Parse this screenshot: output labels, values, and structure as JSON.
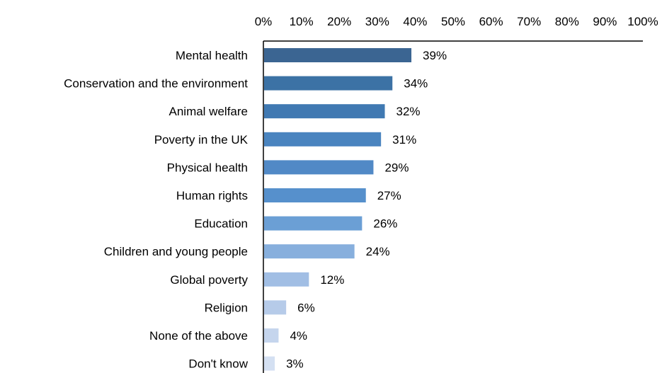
{
  "chart_data": {
    "type": "bar",
    "orientation": "horizontal",
    "categories": [
      "Mental health",
      "Conservation and the environment",
      "Animal welfare",
      "Poverty in the UK",
      "Physical health",
      "Human rights",
      "Education",
      "Children and young people",
      "Global poverty",
      "Religion",
      "None of the above",
      "Don't know"
    ],
    "values": [
      39,
      34,
      32,
      31,
      29,
      27,
      26,
      24,
      12,
      6,
      4,
      3
    ],
    "data_labels": [
      "39%",
      "34%",
      "32%",
      "31%",
      "29%",
      "27%",
      "26%",
      "24%",
      "12%",
      "6%",
      "4%",
      "3%"
    ],
    "x_ticks": [
      "0%",
      "10%",
      "20%",
      "30%",
      "40%",
      "50%",
      "60%",
      "70%",
      "80%",
      "90%",
      "100%"
    ],
    "xlim": [
      0,
      100
    ],
    "x_axis_position": "top",
    "grid": false,
    "legend": "none",
    "title": "",
    "xlabel": "",
    "ylabel": "",
    "bar_colors": [
      "#3b6592",
      "#3c72a5",
      "#4079b2",
      "#4a84bf",
      "#5189c6",
      "#5690cc",
      "#6b9fd5",
      "#87afdd",
      "#a1bee4",
      "#b6cbe9",
      "#c5d5ed",
      "#d4e0f2"
    ]
  }
}
